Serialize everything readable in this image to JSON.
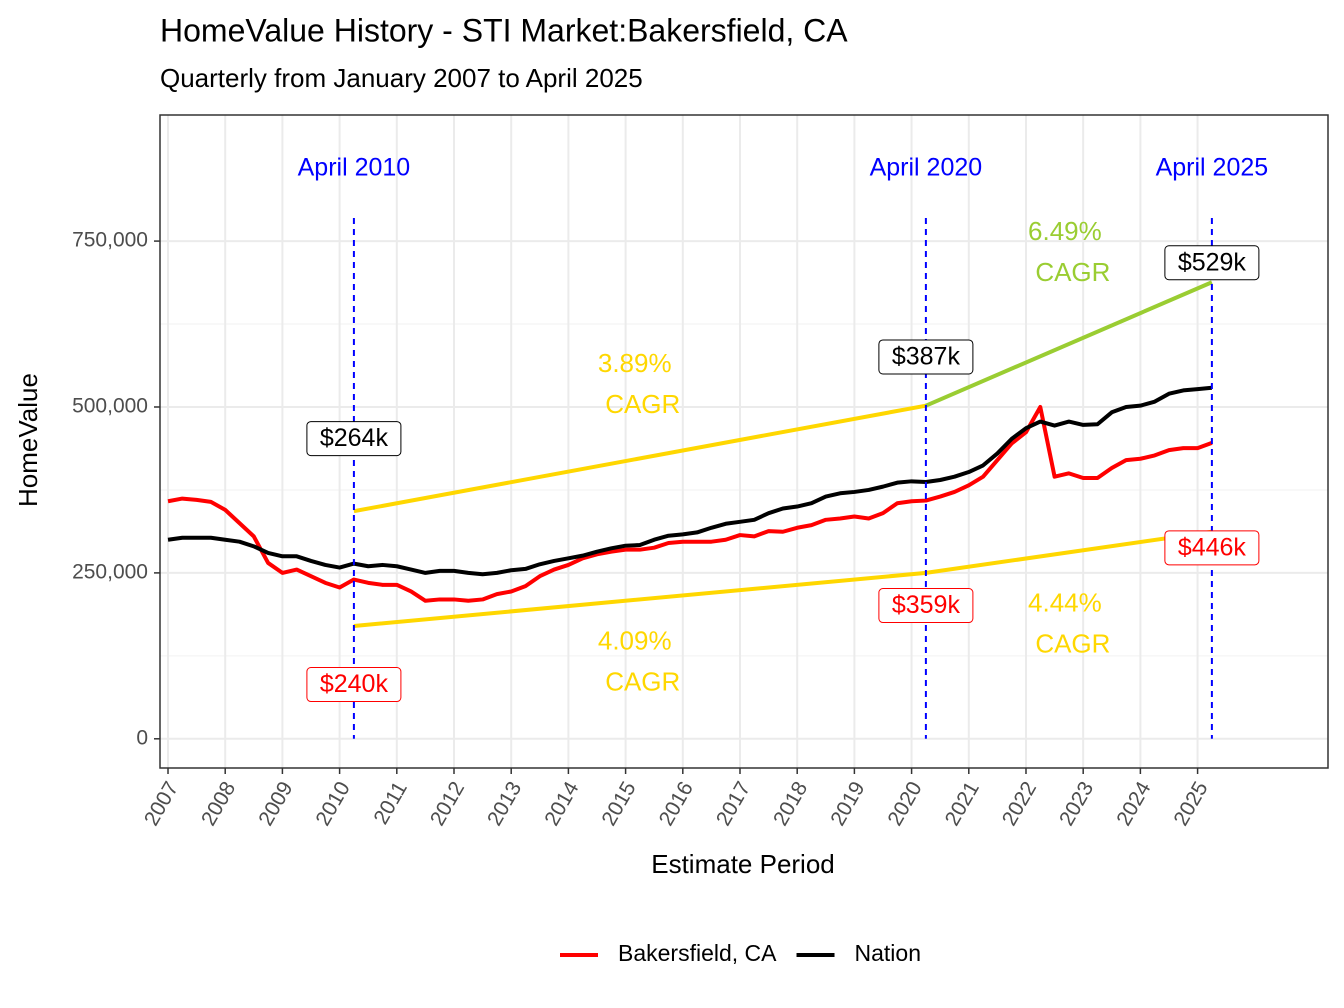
{
  "chart_data": {
    "type": "line",
    "title": "HomeValue History - STI Market:Bakersfield, CA",
    "subtitle": "Quarterly from January 2007 to April 2025",
    "x_label": "Estimate Period",
    "y_label": "HomeValue",
    "x": [
      2007,
      2007.25,
      2007.5,
      2007.75,
      2008,
      2008.25,
      2008.5,
      2008.75,
      2009,
      2009.25,
      2009.5,
      2009.75,
      2010,
      2010.25,
      2010.5,
      2010.75,
      2011,
      2011.25,
      2011.5,
      2011.75,
      2012,
      2012.25,
      2012.5,
      2012.75,
      2013,
      2013.25,
      2013.5,
      2013.75,
      2014,
      2014.25,
      2014.5,
      2014.75,
      2015,
      2015.25,
      2015.5,
      2015.75,
      2016,
      2016.25,
      2016.5,
      2016.75,
      2017,
      2017.25,
      2017.5,
      2017.75,
      2018,
      2018.25,
      2018.5,
      2018.75,
      2019,
      2019.25,
      2019.5,
      2019.75,
      2020,
      2020.25,
      2020.5,
      2020.75,
      2021,
      2021.25,
      2021.5,
      2021.75,
      2022,
      2022.25,
      2022.5,
      2022.75,
      2023,
      2023.25,
      2023.5,
      2023.75,
      2024,
      2024.25,
      2024.5,
      2024.75,
      2025,
      2025.25
    ],
    "series": [
      {
        "name": "Bakersfield, CA",
        "color": "#ff0000",
        "values": [
          358000,
          362000,
          360000,
          357000,
          345000,
          325000,
          305000,
          265000,
          250000,
          255000,
          245000,
          235000,
          228000,
          240000,
          235000,
          232000,
          232000,
          222000,
          208000,
          210000,
          210000,
          208000,
          210000,
          218000,
          222000,
          230000,
          245000,
          255000,
          262000,
          272000,
          278000,
          282000,
          285000,
          285000,
          288000,
          295000,
          297000,
          297000,
          297000,
          300000,
          307000,
          305000,
          313000,
          312000,
          318000,
          322000,
          330000,
          332000,
          335000,
          332000,
          340000,
          355000,
          358000,
          359000,
          365000,
          372000,
          382000,
          395000,
          420000,
          445000,
          462000,
          500000,
          395000,
          400000,
          393000,
          393000,
          408000,
          420000,
          422000,
          427000,
          435000,
          438000,
          438000,
          446000
        ]
      },
      {
        "name": "Nation",
        "color": "#000000",
        "values": [
          300000,
          303000,
          303000,
          303000,
          300000,
          297000,
          290000,
          280000,
          275000,
          275000,
          268000,
          262000,
          258000,
          264000,
          260000,
          262000,
          260000,
          255000,
          250000,
          253000,
          253000,
          250000,
          248000,
          250000,
          254000,
          256000,
          263000,
          268000,
          272000,
          276000,
          282000,
          287000,
          291000,
          292000,
          300000,
          306000,
          308000,
          311000,
          318000,
          324000,
          327000,
          330000,
          340000,
          347000,
          350000,
          355000,
          365000,
          370000,
          372000,
          375000,
          380000,
          386000,
          388000,
          387000,
          390000,
          395000,
          402000,
          412000,
          430000,
          452000,
          468000,
          478000,
          472000,
          478000,
          473000,
          474000,
          492000,
          500000,
          502000,
          508000,
          520000,
          525000,
          527000,
          529000
        ]
      }
    ],
    "cagr_lines": [
      {
        "color": "#ffd700",
        "x": [
          2010.25,
          2020.25
        ],
        "values": [
          343000,
          502000
        ]
      },
      {
        "color": "#9acd32",
        "x": [
          2020.25,
          2025.25
        ],
        "values": [
          502000,
          688000
        ]
      },
      {
        "color": "#ffd700",
        "x": [
          2010.25,
          2020.25,
          2025.25
        ],
        "values": [
          170000,
          250000,
          312000
        ]
      }
    ],
    "annotations": [
      {
        "text": [
          "3.89%",
          "CAGR"
        ],
        "color": "#ffd700",
        "x": 2015.16,
        "y": 563000
      },
      {
        "text": [
          "4.09%",
          "CAGR"
        ],
        "color": "#ffd700",
        "x": 2015.16,
        "y": 145000
      },
      {
        "text": [
          "6.49%",
          "CAGR"
        ],
        "color": "#9acd32",
        "x": 2022.68,
        "y": 762000
      },
      {
        "text": [
          "4.44%",
          "CAGR"
        ],
        "color": "#ffd700",
        "x": 2022.68,
        "y": 202000
      }
    ],
    "markers": [
      {
        "x": 2010.25,
        "label": "April 2010",
        "values": [
          240000,
          264000
        ],
        "value_labels": [
          "$240k",
          "$264k"
        ]
      },
      {
        "x": 2020.25,
        "label": "April 2020",
        "values": [
          359000,
          387000
        ],
        "value_labels": [
          "$359k",
          "$387k"
        ]
      },
      {
        "x": 2025.25,
        "label": "April 2025",
        "values": [
          446000,
          529000
        ],
        "value_labels": [
          "$446k",
          "$529k"
        ]
      }
    ],
    "marker_color": "#0000ff",
    "xlim": [
      2006.86,
      2027.28
    ],
    "ylim": [
      -44000,
      940000
    ],
    "xticks": [
      2007,
      2008,
      2009,
      2010,
      2011,
      2012,
      2013,
      2014,
      2015,
      2016,
      2017,
      2018,
      2019,
      2020,
      2021,
      2022,
      2023,
      2024,
      2025
    ],
    "yticks": [
      0,
      {
        "value": 250000,
        "label": "250,000"
      },
      {
        "value": 500000,
        "label": "500,000"
      },
      {
        "value": 750000,
        "label": "750,000"
      }
    ],
    "grid": true,
    "legend": "bottom"
  }
}
